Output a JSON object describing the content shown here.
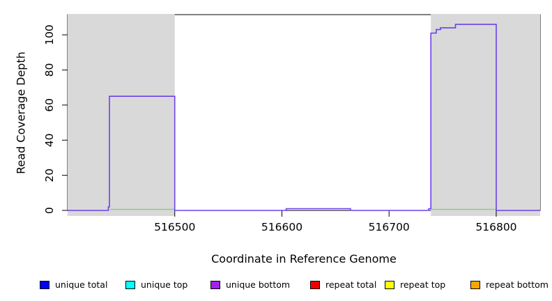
{
  "figure": {
    "xlabel": "Coordinate in Reference Genome",
    "ylabel": "Read Coverage Depth"
  },
  "chart_data": {
    "type": "line",
    "subtype": "step-coverage-plot",
    "title": "",
    "xlabel": "Coordinate in Reference Genome",
    "ylabel": "Read Coverage Depth",
    "xlim": [
      516400,
      516841
    ],
    "ylim": [
      0,
      111.5
    ],
    "x_ticks": [
      516500,
      516600,
      516700,
      516800
    ],
    "y_ticks": [
      0,
      20,
      40,
      60,
      80,
      100
    ],
    "grid": false,
    "background": "#ffffff",
    "shaded_regions": [
      {
        "name": "shaded-region-left",
        "x_start": 516400,
        "x_end": 516500,
        "color": "#d9d9d9"
      },
      {
        "name": "shaded-region-right",
        "x_start": 516739,
        "x_end": 516841,
        "color": "#d9d9d9"
      }
    ],
    "series": [
      {
        "name": "unique-coverage-line",
        "color": "#6b40ea",
        "draw": "step",
        "points": [
          [
            516400,
            0
          ],
          [
            516438,
            0
          ],
          [
            516438,
            2
          ],
          [
            516439,
            2
          ],
          [
            516439,
            65
          ],
          [
            516500,
            65
          ],
          [
            516500,
            0
          ],
          [
            516604,
            0
          ],
          [
            516604,
            1
          ],
          [
            516664,
            1
          ],
          [
            516664,
            0
          ],
          [
            516737,
            0
          ],
          [
            516737,
            1
          ],
          [
            516739,
            1
          ],
          [
            516739,
            101
          ],
          [
            516744,
            101
          ],
          [
            516744,
            103
          ],
          [
            516748,
            103
          ],
          [
            516748,
            104
          ],
          [
            516762,
            104
          ],
          [
            516762,
            106
          ],
          [
            516800,
            106
          ],
          [
            516800,
            0
          ],
          [
            516841,
            0
          ]
        ]
      },
      {
        "name": "baseline-marker-line",
        "color": "#8ccb8c",
        "draw": "segments",
        "value": 0.6,
        "segments": [
          [
            516439,
            516500
          ],
          [
            516739,
            516800
          ]
        ]
      }
    ],
    "legend_position": "bottom"
  },
  "legend": {
    "items": [
      {
        "label": "unique total",
        "color": "#0000ff"
      },
      {
        "label": "unique top",
        "color": "#00ffff"
      },
      {
        "label": "unique bottom",
        "color": "#a020f0"
      },
      {
        "label": "repeat total",
        "color": "#ee0000"
      },
      {
        "label": "repeat top",
        "color": "#ffff00"
      },
      {
        "label": "repeat bottom",
        "color": "#ffa500"
      }
    ]
  }
}
